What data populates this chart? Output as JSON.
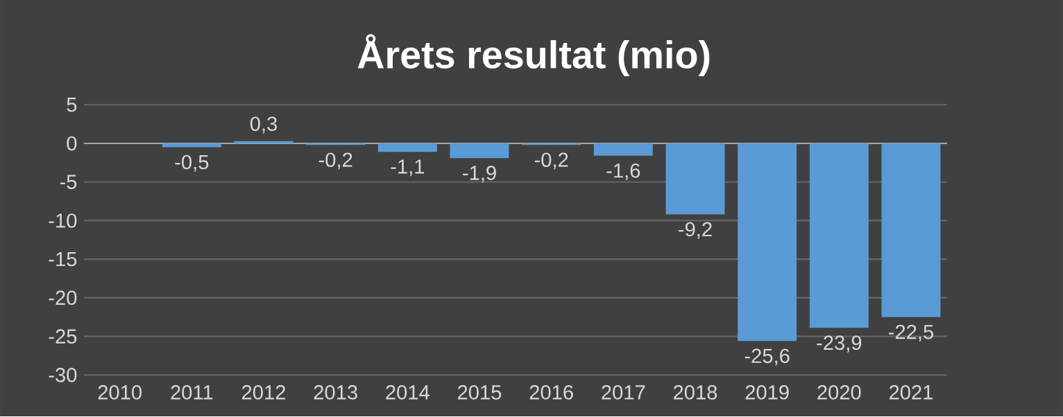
{
  "chart_data": {
    "type": "bar",
    "title": "Årets resultat (mio)",
    "categories": [
      "2010",
      "2011",
      "2012",
      "2013",
      "2014",
      "2015",
      "2016",
      "2017",
      "2018",
      "2019",
      "2020",
      "2021"
    ],
    "values": [
      null,
      -0.5,
      0.3,
      -0.2,
      -1.1,
      -1.9,
      -0.2,
      -1.6,
      -9.2,
      -25.6,
      -23.9,
      -22.5
    ],
    "value_labels": [
      null,
      "-0,5",
      "0,3",
      "-0,2",
      "-1,1",
      "-1,9",
      "-0,2",
      "-1,6",
      "-9,2",
      "-25,6",
      "-23,9",
      "-22,5"
    ],
    "color": "#5b9bd5",
    "ylim": [
      -30,
      5
    ],
    "yticks": [
      -30,
      -25,
      -20,
      -15,
      -10,
      -5,
      0,
      5
    ],
    "grid": "y"
  }
}
